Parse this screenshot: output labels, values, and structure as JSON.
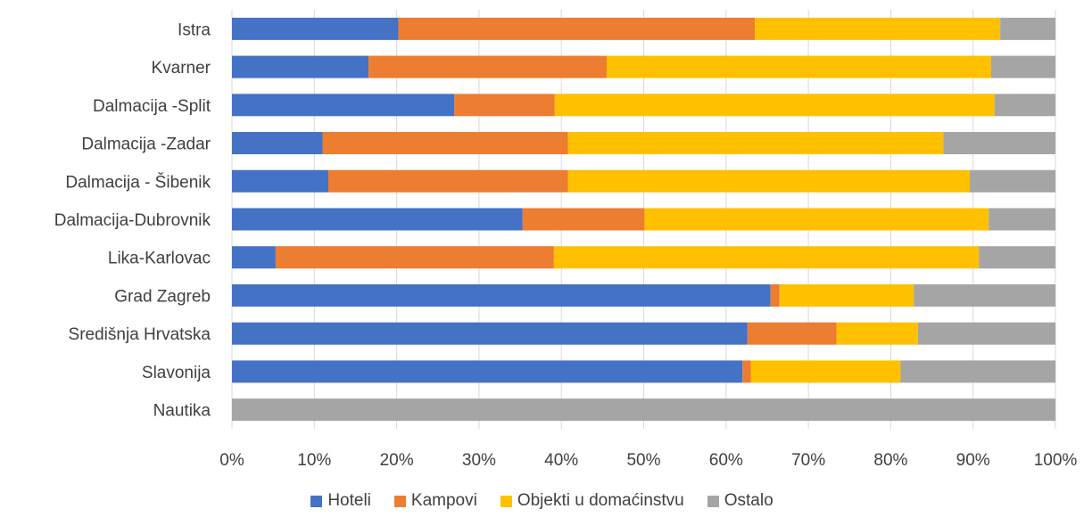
{
  "chart_data": {
    "type": "bar",
    "orientation": "horizontal",
    "stacked": "percent",
    "categories": [
      "Istra",
      "Kvarner",
      "Dalmacija -Split",
      "Dalmacija -Zadar",
      "Dalmacija - Šibenik",
      "Dalmacija-Dubrovnik",
      "Lika-Karlovac",
      "Grad Zagreb",
      "Središnja Hrvatska",
      "Slavonija",
      "Nautika"
    ],
    "series": [
      {
        "name": "Hoteli",
        "color": "#4472C4",
        "values": [
          20.2,
          16.6,
          27.0,
          11.0,
          11.7,
          35.3,
          5.3,
          65.4,
          62.6,
          62.0,
          0.0
        ]
      },
      {
        "name": "Kampovi",
        "color": "#ED7D31",
        "values": [
          43.3,
          28.9,
          12.2,
          29.8,
          29.1,
          14.8,
          33.8,
          1.1,
          10.8,
          1.0,
          0.0
        ]
      },
      {
        "name": "Objekti u domaćinstvu",
        "color": "#FFC000",
        "values": [
          29.8,
          46.7,
          53.4,
          45.6,
          48.8,
          41.8,
          51.6,
          16.3,
          9.9,
          18.2,
          0.0
        ]
      },
      {
        "name": "Ostalo",
        "color": "#A5A5A5",
        "values": [
          6.7,
          7.8,
          7.4,
          13.6,
          10.4,
          8.1,
          9.3,
          17.2,
          16.7,
          18.8,
          100.0
        ]
      }
    ],
    "xticks": [
      "0%",
      "10%",
      "20%",
      "30%",
      "40%",
      "50%",
      "60%",
      "70%",
      "80%",
      "90%",
      "100%"
    ],
    "xlim": [
      0,
      100
    ],
    "grid": true,
    "legend_position": "bottom"
  }
}
